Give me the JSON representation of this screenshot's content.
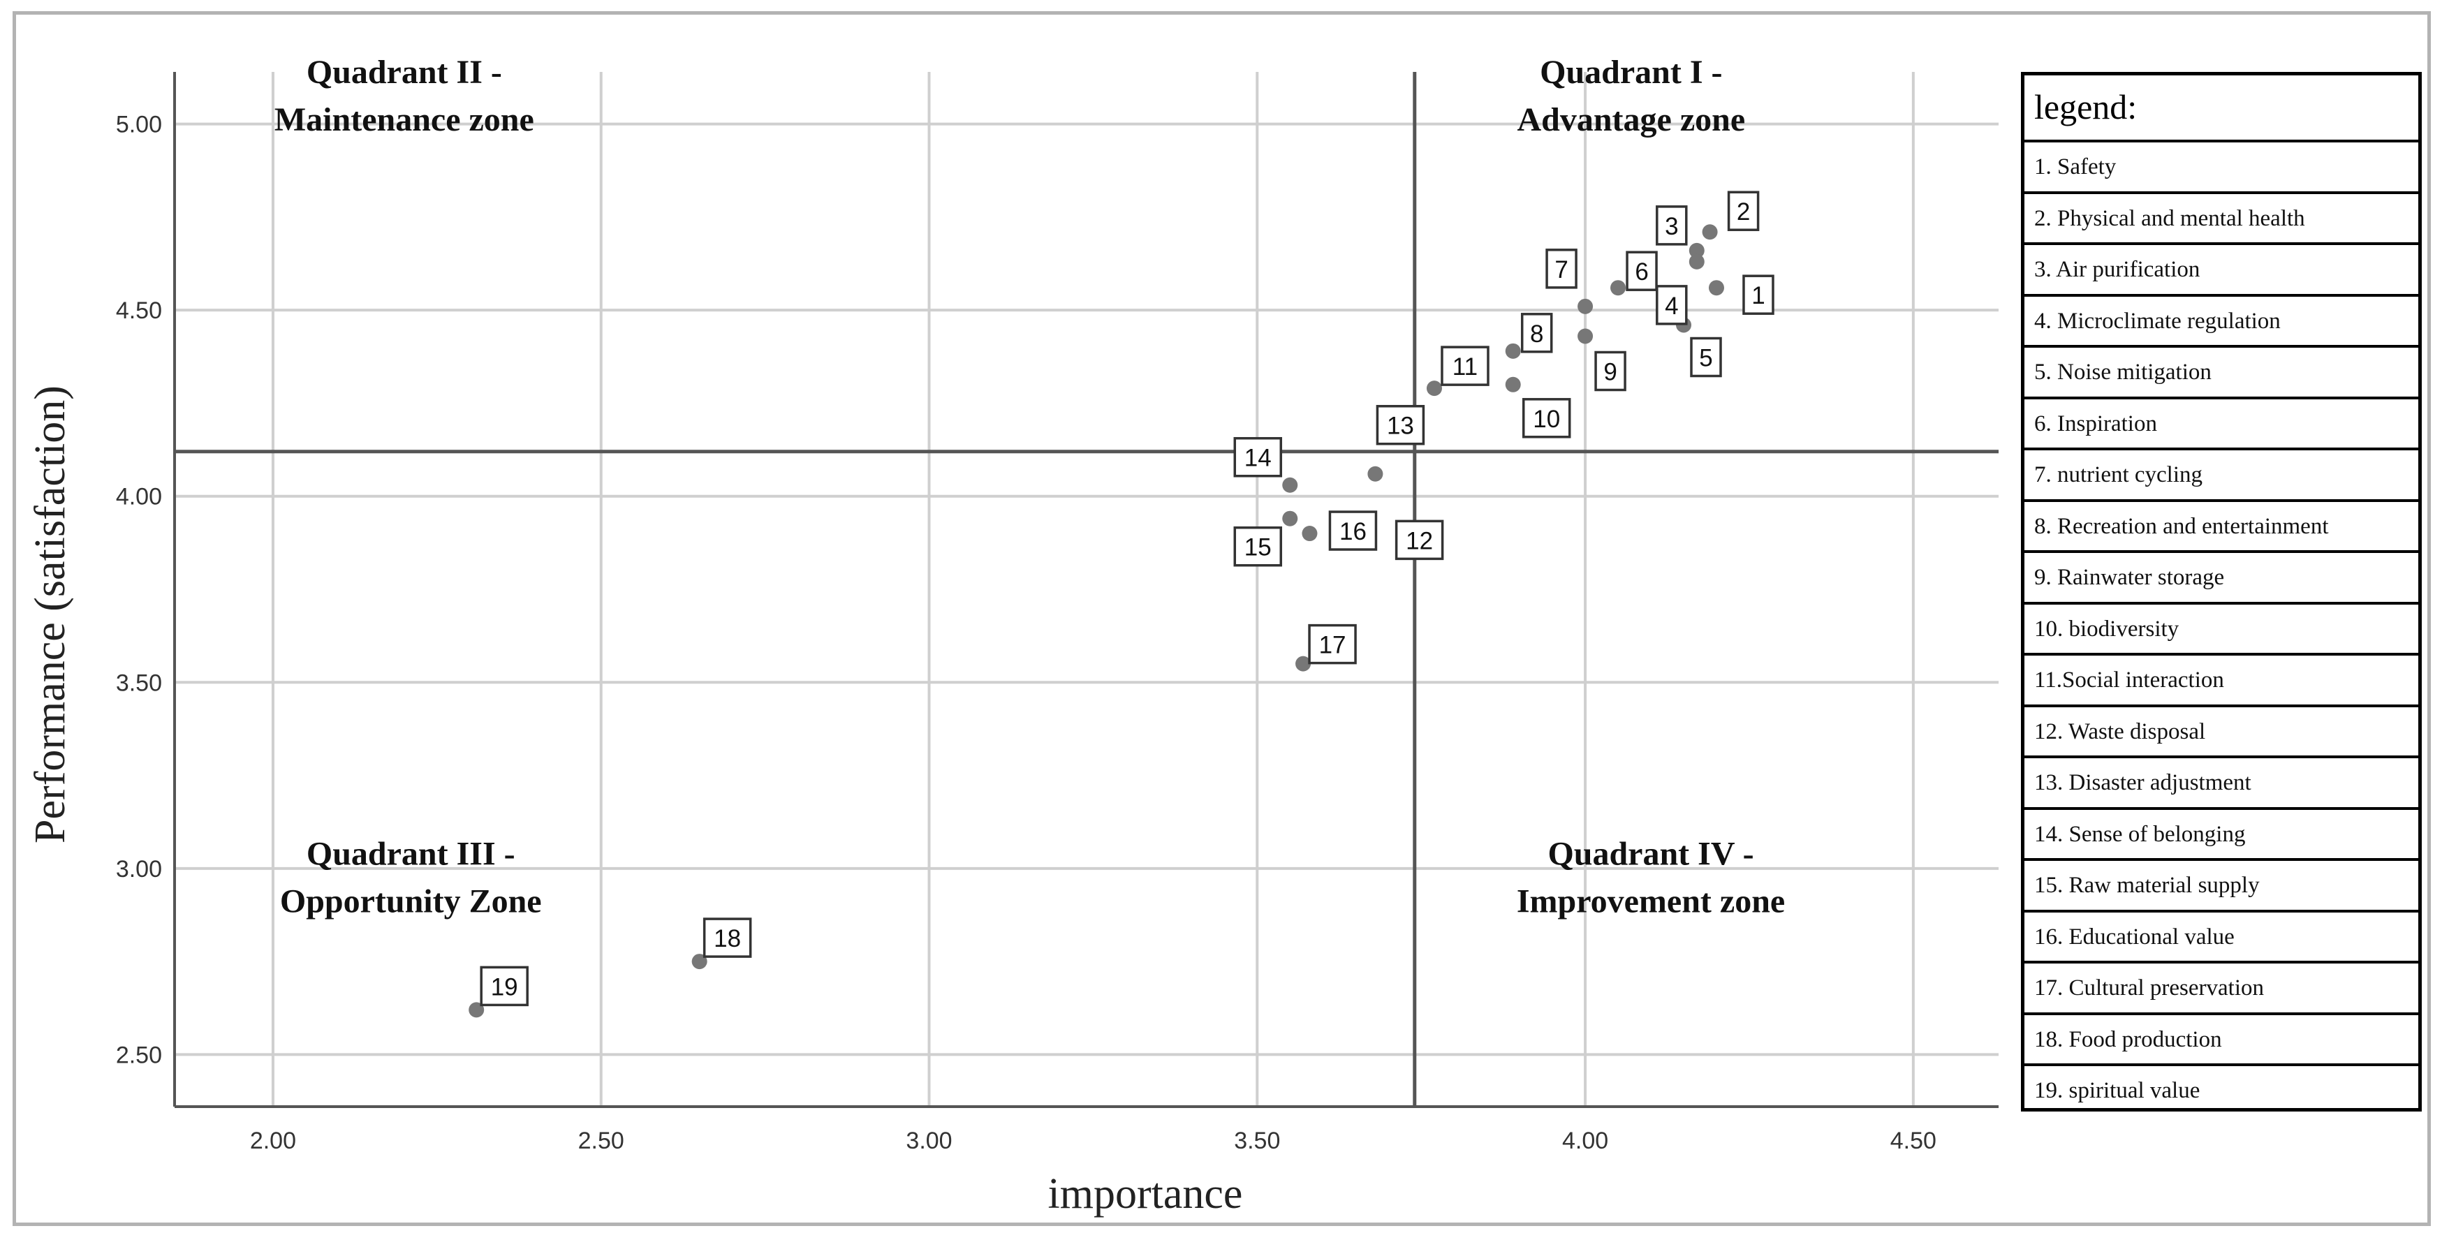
{
  "chart_data": {
    "type": "scatter",
    "xlabel": "importance",
    "ylabel": "Performance (satisfaction)",
    "xlim": [
      1.85,
      4.63
    ],
    "ylim": [
      2.36,
      5.14
    ],
    "x_ticks": [
      "2.00",
      "2.50",
      "3.00",
      "3.50",
      "4.00",
      "4.50"
    ],
    "y_ticks": [
      "2.50",
      "3.00",
      "3.50",
      "4.00",
      "4.50",
      "5.00"
    ],
    "x_tick_values": [
      2.0,
      2.5,
      3.0,
      3.5,
      4.0,
      4.5
    ],
    "y_tick_values": [
      2.5,
      3.0,
      3.5,
      4.0,
      4.5,
      5.0
    ],
    "grid": true,
    "mean_lines": {
      "x": 3.74,
      "y": 4.12
    },
    "quadrants": {
      "q1": [
        "Quadrant I -",
        "Advantage zone"
      ],
      "q2": [
        "Quadrant II -",
        "Maintenance zone"
      ],
      "q3": [
        "Quadrant III -",
        "Opportunity Zone"
      ],
      "q4": [
        "Quadrant IV -",
        "Improvement zone"
      ]
    },
    "points": [
      {
        "label": "1",
        "x": 4.2,
        "y": 4.56
      },
      {
        "label": "2",
        "x": 4.19,
        "y": 4.71
      },
      {
        "label": "3",
        "x": 4.17,
        "y": 4.66
      },
      {
        "label": "4",
        "x": 4.17,
        "y": 4.63
      },
      {
        "label": "5",
        "x": 4.15,
        "y": 4.46
      },
      {
        "label": "6",
        "x": 4.05,
        "y": 4.56
      },
      {
        "label": "7",
        "x": 4.0,
        "y": 4.51
      },
      {
        "label": "8",
        "x": 3.89,
        "y": 4.39
      },
      {
        "label": "9",
        "x": 4.0,
        "y": 4.43
      },
      {
        "label": "10",
        "x": 3.89,
        "y": 4.3
      },
      {
        "label": "11",
        "x": 3.77,
        "y": 4.29
      },
      {
        "label": "12",
        "x": 3.66,
        "y": 3.89
      },
      {
        "label": "13",
        "x": 3.68,
        "y": 4.06
      },
      {
        "label": "14",
        "x": 3.55,
        "y": 4.03
      },
      {
        "label": "15",
        "x": 3.55,
        "y": 3.94
      },
      {
        "label": "16",
        "x": 3.58,
        "y": 3.9
      },
      {
        "label": "17",
        "x": 3.57,
        "y": 3.55
      },
      {
        "label": "18",
        "x": 2.65,
        "y": 2.75
      },
      {
        "label": "19",
        "x": 2.31,
        "y": 2.62
      }
    ],
    "legend": {
      "title": "legend:",
      "items": [
        "1. Safety",
        "2. Physical and mental health",
        "3. Air purification",
        "4. Microclimate regulation",
        "5. Noise mitigation",
        "6. Inspiration",
        "7. nutrient cycling",
        "8. Recreation and entertainment",
        "9. Rainwater storage",
        "10. biodiversity",
        "11.Social interaction",
        "12. Waste disposal",
        "13. Disaster adjustment",
        "14. Sense of belonging",
        "15. Raw material supply",
        "16. Educational value",
        "17. Cultural preservation",
        "18. Food production",
        "19. spiritual value"
      ]
    },
    "colors": {
      "point": "#777777",
      "grid": "#cfcfcf",
      "mean_line": "#555555",
      "axis": "#555555"
    }
  }
}
